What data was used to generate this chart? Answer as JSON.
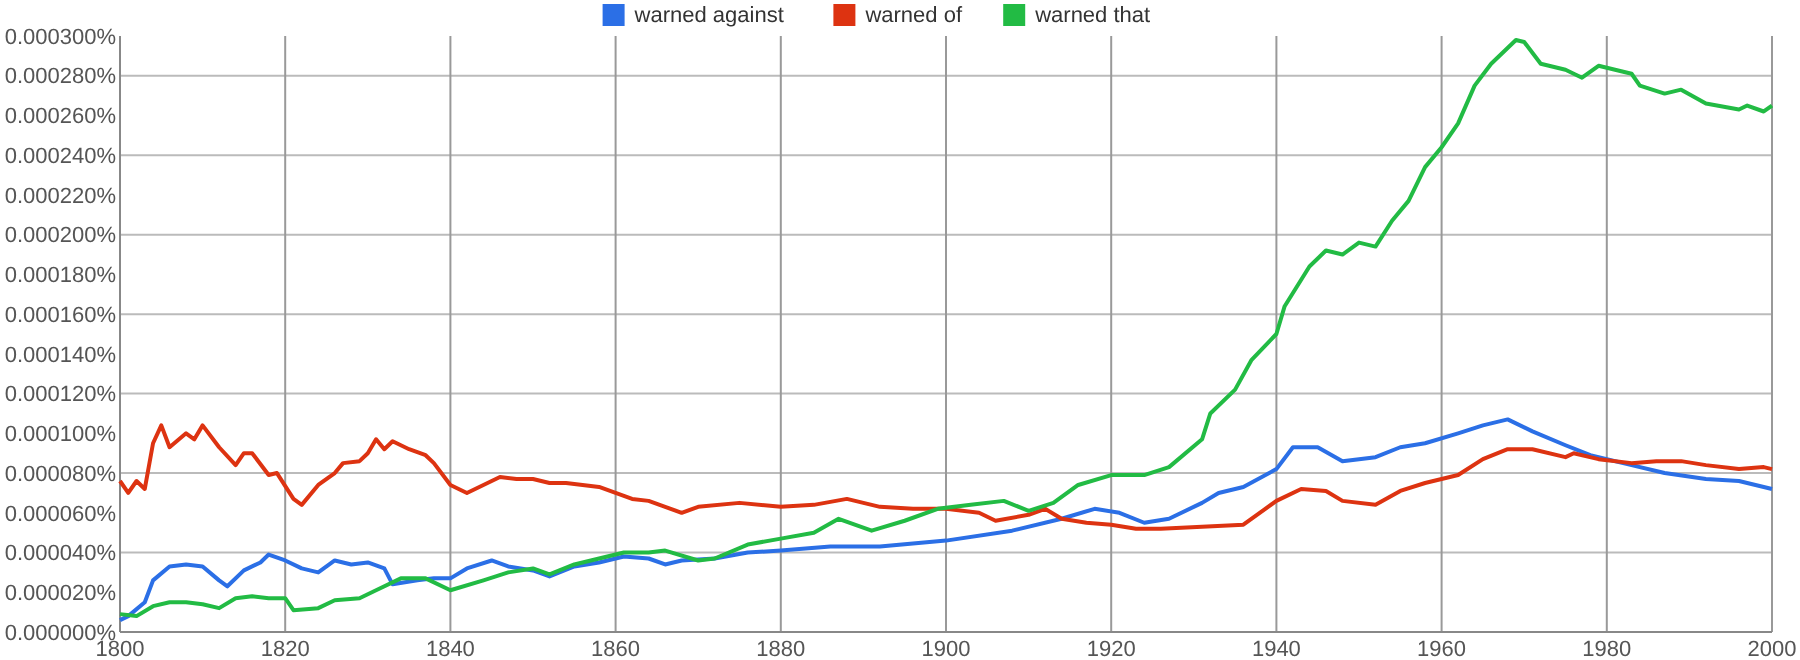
{
  "chart_data": {
    "type": "line",
    "xlim": [
      1800,
      2000
    ],
    "xticks": [
      1800,
      1820,
      1840,
      1860,
      1880,
      1900,
      1920,
      1940,
      1960,
      1980,
      2000
    ],
    "ylim": [
      0,
      0.0003
    ],
    "yticks": [
      {
        "value": 0,
        "label": "0.000000%"
      },
      {
        "value": 2e-05,
        "label": "0.000020%"
      },
      {
        "value": 4e-05,
        "label": "0.000040%"
      },
      {
        "value": 6e-05,
        "label": "0.000060%"
      },
      {
        "value": 8e-05,
        "label": "0.000080%"
      },
      {
        "value": 0.0001,
        "label": "0.000100%"
      },
      {
        "value": 0.00012,
        "label": "0.000120%"
      },
      {
        "value": 0.00014,
        "label": "0.000140%"
      },
      {
        "value": 0.00016,
        "label": "0.000160%"
      },
      {
        "value": 0.00018,
        "label": "0.000180%"
      },
      {
        "value": 0.0002,
        "label": "0.000200%"
      },
      {
        "value": 0.00022,
        "label": "0.000220%"
      },
      {
        "value": 0.00024,
        "label": "0.000240%"
      },
      {
        "value": 0.00026,
        "label": "0.000260%"
      },
      {
        "value": 0.00028,
        "label": "0.000280%"
      },
      {
        "value": 0.0003,
        "label": "0.000300%"
      }
    ],
    "grid": true,
    "legend": "top",
    "marker": "none",
    "line_style": "solid",
    "series": [
      {
        "name": "warned against",
        "color": "#2b6fe6",
        "x": [
          1800,
          1801,
          1803,
          1804,
          1806,
          1808,
          1810,
          1812,
          1813,
          1815,
          1817,
          1818,
          1820,
          1822,
          1824,
          1826,
          1828,
          1830,
          1832,
          1833,
          1836,
          1838,
          1840,
          1842,
          1845,
          1847,
          1850,
          1852,
          1855,
          1858,
          1861,
          1864,
          1866,
          1868,
          1872,
          1876,
          1880,
          1886,
          1892,
          1900,
          1908,
          1914,
          1918,
          1921,
          1924,
          1927,
          1931,
          1933,
          1936,
          1940,
          1942,
          1945,
          1948,
          1952,
          1955,
          1958,
          1962,
          1965,
          1968,
          1971,
          1975,
          1978,
          1983,
          1987,
          1992,
          1996,
          2000
        ],
        "values": [
          6e-06,
          8e-06,
          1.5e-05,
          2.6e-05,
          3.3e-05,
          3.4e-05,
          3.3e-05,
          2.6e-05,
          2.3e-05,
          3.1e-05,
          3.5e-05,
          3.9e-05,
          3.6e-05,
          3.2e-05,
          3e-05,
          3.6e-05,
          3.4e-05,
          3.5e-05,
          3.2e-05,
          2.4e-05,
          2.6e-05,
          2.7e-05,
          2.7e-05,
          3.2e-05,
          3.6e-05,
          3.3e-05,
          3.1e-05,
          2.8e-05,
          3.3e-05,
          3.5e-05,
          3.8e-05,
          3.7e-05,
          3.4e-05,
          3.6e-05,
          3.7e-05,
          4e-05,
          4.1e-05,
          4.3e-05,
          4.3e-05,
          4.6e-05,
          5.1e-05,
          5.7e-05,
          6.2e-05,
          6e-05,
          5.5e-05,
          5.7e-05,
          6.5e-05,
          7e-05,
          7.3e-05,
          8.2e-05,
          9.3e-05,
          9.3e-05,
          8.6e-05,
          8.8e-05,
          9.3e-05,
          9.5e-05,
          0.0001,
          0.000104,
          0.000107,
          0.000101,
          9.4e-05,
          8.9e-05,
          8.4e-05,
          8e-05,
          7.7e-05,
          7.6e-05,
          7.2e-05
        ]
      },
      {
        "name": "warned of",
        "color": "#dd3311",
        "x": [
          1800,
          1801,
          1802,
          1803,
          1804,
          1805,
          1806,
          1808,
          1809,
          1810,
          1812,
          1814,
          1815,
          1816,
          1818,
          1819,
          1821,
          1822,
          1824,
          1826,
          1827,
          1829,
          1830,
          1831,
          1832,
          1833,
          1835,
          1837,
          1838,
          1840,
          1842,
          1844,
          1846,
          1848,
          1850,
          1852,
          1854,
          1856,
          1858,
          1860,
          1862,
          1864,
          1866,
          1868,
          1870,
          1875,
          1880,
          1884,
          1888,
          1892,
          1896,
          1900,
          1904,
          1906,
          1910,
          1912,
          1914,
          1917,
          1920,
          1923,
          1926,
          1931,
          1936,
          1940,
          1943,
          1946,
          1948,
          1952,
          1955,
          1958,
          1962,
          1965,
          1968,
          1971,
          1975,
          1976,
          1979,
          1983,
          1986,
          1989,
          1992,
          1996,
          1999,
          2000
        ],
        "values": [
          7.6e-05,
          7e-05,
          7.6e-05,
          7.2e-05,
          9.5e-05,
          0.000104,
          9.3e-05,
          0.0001,
          9.7e-05,
          0.000104,
          9.3e-05,
          8.4e-05,
          9e-05,
          9e-05,
          7.9e-05,
          8e-05,
          6.7e-05,
          6.4e-05,
          7.4e-05,
          8e-05,
          8.5e-05,
          8.6e-05,
          9e-05,
          9.7e-05,
          9.2e-05,
          9.6e-05,
          9.2e-05,
          8.9e-05,
          8.5e-05,
          7.4e-05,
          7e-05,
          7.4e-05,
          7.8e-05,
          7.7e-05,
          7.7e-05,
          7.5e-05,
          7.5e-05,
          7.4e-05,
          7.3e-05,
          7e-05,
          6.7e-05,
          6.6e-05,
          6.3e-05,
          6e-05,
          6.3e-05,
          6.5e-05,
          6.3e-05,
          6.4e-05,
          6.7e-05,
          6.3e-05,
          6.2e-05,
          6.2e-05,
          6e-05,
          5.6e-05,
          5.9e-05,
          6.2e-05,
          5.7e-05,
          5.5e-05,
          5.4e-05,
          5.2e-05,
          5.2e-05,
          5.3e-05,
          5.4e-05,
          6.6e-05,
          7.2e-05,
          7.1e-05,
          6.6e-05,
          6.4e-05,
          7.1e-05,
          7.5e-05,
          7.9e-05,
          8.7e-05,
          9.2e-05,
          9.2e-05,
          8.8e-05,
          9e-05,
          8.7e-05,
          8.5e-05,
          8.6e-05,
          8.6e-05,
          8.4e-05,
          8.2e-05,
          8.3e-05,
          8.2e-05
        ]
      },
      {
        "name": "warned that",
        "color": "#22bb44",
        "x": [
          1800,
          1802,
          1804,
          1806,
          1808,
          1810,
          1812,
          1814,
          1816,
          1818,
          1820,
          1821,
          1824,
          1826,
          1829,
          1831,
          1834,
          1837,
          1840,
          1844,
          1847,
          1850,
          1852,
          1855,
          1858,
          1861,
          1864,
          1866,
          1870,
          1872,
          1876,
          1880,
          1884,
          1887,
          1891,
          1895,
          1899,
          1903,
          1907,
          1910,
          1913,
          1916,
          1920,
          1924,
          1927,
          1931,
          1932,
          1935,
          1937,
          1940,
          1941,
          1944,
          1946,
          1948,
          1950,
          1952,
          1954,
          1956,
          1958,
          1960,
          1962,
          1964,
          1966,
          1969,
          1970,
          1972,
          1975,
          1977,
          1979,
          1983,
          1984,
          1987,
          1989,
          1992,
          1996,
          1997,
          1999,
          2000
        ],
        "values": [
          9e-06,
          8e-06,
          1.3e-05,
          1.5e-05,
          1.5e-05,
          1.4e-05,
          1.2e-05,
          1.7e-05,
          1.8e-05,
          1.7e-05,
          1.7e-05,
          1.1e-05,
          1.2e-05,
          1.6e-05,
          1.7e-05,
          2.1e-05,
          2.7e-05,
          2.7e-05,
          2.1e-05,
          2.6e-05,
          3e-05,
          3.2e-05,
          2.9e-05,
          3.4e-05,
          3.7e-05,
          4e-05,
          4e-05,
          4.1e-05,
          3.6e-05,
          3.7e-05,
          4.4e-05,
          4.7e-05,
          5e-05,
          5.7e-05,
          5.1e-05,
          5.6e-05,
          6.2e-05,
          6.4e-05,
          6.6e-05,
          6.1e-05,
          6.5e-05,
          7.4e-05,
          7.9e-05,
          7.9e-05,
          8.3e-05,
          9.7e-05,
          0.00011,
          0.000122,
          0.000137,
          0.00015,
          0.000164,
          0.000184,
          0.000192,
          0.00019,
          0.000196,
          0.000194,
          0.000207,
          0.000217,
          0.000234,
          0.000244,
          0.000256,
          0.000275,
          0.000286,
          0.000298,
          0.000297,
          0.000286,
          0.000283,
          0.000279,
          0.000285,
          0.000281,
          0.000275,
          0.000271,
          0.000273,
          0.000266,
          0.000263,
          0.000265,
          0.000262,
          0.000265
        ]
      }
    ]
  }
}
